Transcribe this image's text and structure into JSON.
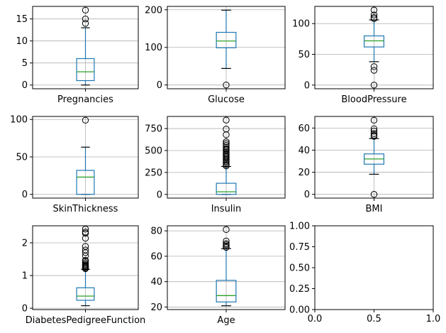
{
  "chart_data": [
    {
      "type": "box",
      "category": "Pregnancies",
      "ylim": [
        -0.85,
        17.85
      ],
      "yticks": [
        0,
        5,
        10,
        15
      ],
      "grid": true,
      "whisker_low": 0,
      "q1": 1,
      "median": 3,
      "q3": 6,
      "whisker_high": 13,
      "outliers": [
        14,
        15,
        17
      ]
    },
    {
      "type": "box",
      "category": "Glucose",
      "ylim": [
        -10,
        209
      ],
      "yticks": [
        0,
        100,
        200
      ],
      "grid": true,
      "whisker_low": 44,
      "q1": 99,
      "median": 117,
      "q3": 140,
      "whisker_high": 199,
      "outliers": [
        0
      ]
    },
    {
      "type": "box",
      "category": "BloodPressure",
      "ylim": [
        -6,
        128
      ],
      "yticks": [
        0,
        50,
        100
      ],
      "grid": true,
      "whisker_low": 38,
      "q1": 62,
      "median": 72,
      "q3": 80,
      "whisker_high": 106,
      "outliers": [
        0,
        24,
        30,
        108,
        110,
        114,
        122
      ]
    },
    {
      "type": "box",
      "category": "SkinThickness",
      "ylim": [
        -5,
        104
      ],
      "yticks": [
        0,
        50,
        100
      ],
      "grid": true,
      "whisker_low": 0,
      "q1": 0,
      "median": 23,
      "q3": 32,
      "whisker_high": 63,
      "outliers": [
        99
      ]
    },
    {
      "type": "box",
      "category": "Insulin",
      "ylim": [
        -42,
        888
      ],
      "yticks": [
        0,
        250,
        500,
        750
      ],
      "grid": true,
      "whisker_low": 0,
      "q1": 0,
      "median": 30,
      "q3": 127,
      "whisker_high": 318,
      "outliers": [
        325,
        340,
        360,
        375,
        390,
        400,
        415,
        430,
        440,
        455,
        465,
        480,
        495,
        510,
        520,
        540,
        560,
        580,
        600,
        680,
        744,
        846
      ]
    },
    {
      "type": "box",
      "category": "BMI",
      "ylim": [
        -3.4,
        70.5
      ],
      "yticks": [
        0,
        20,
        40,
        60
      ],
      "grid": true,
      "whisker_low": 18.2,
      "q1": 27.3,
      "median": 32,
      "q3": 36.6,
      "whisker_high": 50.5,
      "outliers": [
        0,
        52.5,
        53.5,
        55,
        57.3,
        59.4,
        67.1
      ]
    },
    {
      "type": "box",
      "category": "DiabetesPedigreeFunction",
      "ylim": [
        -0.04,
        2.52
      ],
      "yticks": [
        0,
        1,
        2
      ],
      "grid": true,
      "whisker_low": 0.078,
      "q1": 0.244,
      "median": 0.372,
      "q3": 0.626,
      "whisker_high": 1.19,
      "outliers": [
        1.21,
        1.22,
        1.25,
        1.27,
        1.29,
        1.32,
        1.35,
        1.39,
        1.44,
        1.47,
        1.6,
        1.7,
        1.78,
        1.89,
        2.14,
        2.29,
        2.33,
        2.42
      ]
    },
    {
      "type": "box",
      "category": "Age",
      "ylim": [
        18,
        84
      ],
      "yticks": [
        20,
        40,
        60,
        80
      ],
      "grid": true,
      "whisker_low": 21,
      "q1": 24,
      "median": 29,
      "q3": 41,
      "whisker_high": 66,
      "outliers": [
        67,
        68,
        69,
        70,
        72,
        81
      ]
    },
    {
      "type": "empty",
      "xlim": [
        0,
        1
      ],
      "ylim": [
        0,
        1
      ],
      "xticks": [
        "0.0",
        "0.5",
        "1.0"
      ],
      "yticks": [
        "0.00",
        "0.25",
        "0.50",
        "0.75",
        "1.00"
      ]
    }
  ],
  "colors": {
    "box": "#1f77b4",
    "median": "#2ca02c",
    "whisker": "#000000",
    "grid": "#b0b0b0",
    "outlier": "#000000",
    "axes": "#000000"
  }
}
